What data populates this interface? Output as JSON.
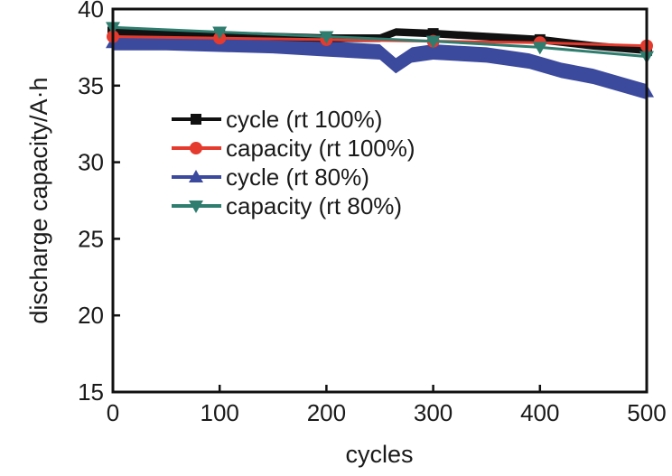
{
  "chart_data": {
    "type": "line",
    "title": "",
    "xlabel": "cycles",
    "ylabel": "discharge capacity/A·h",
    "xlim": [
      0,
      500
    ],
    "ylim": [
      15,
      40
    ],
    "xticks": [
      0,
      100,
      200,
      300,
      400,
      500
    ],
    "yticks": [
      15,
      20,
      25,
      30,
      35,
      40
    ],
    "xtick_labels": [
      "0",
      "100",
      "200",
      "300",
      "400",
      "500"
    ],
    "ytick_labels": [
      "15",
      "20",
      "25",
      "30",
      "35",
      "40"
    ],
    "grid": false,
    "legend_position": "center-left",
    "series": [
      {
        "name": "cycle (rt 100%)",
        "color": "#111111",
        "marker": "square",
        "band": 0.5,
        "x": [
          0,
          50,
          100,
          150,
          200,
          250,
          265,
          300,
          350,
          400,
          450,
          500
        ],
        "values": [
          38.5,
          38.4,
          38.3,
          38.2,
          38.1,
          38.1,
          38.5,
          38.4,
          38.2,
          38.0,
          37.6,
          37.3
        ]
      },
      {
        "name": "capacity (rt 100%)",
        "color": "#e53a2e",
        "marker": "circle",
        "band": 0,
        "x": [
          0,
          100,
          200,
          300,
          400,
          500
        ],
        "values": [
          38.2,
          38.1,
          38.0,
          37.9,
          37.8,
          37.6
        ]
      },
      {
        "name": "cycle (rt 80%)",
        "color": "#3c4a9e",
        "marker": "triangle-up",
        "band": 1.0,
        "x": [
          0,
          50,
          100,
          150,
          200,
          250,
          265,
          280,
          300,
          350,
          390,
          420,
          450,
          480,
          500
        ],
        "values": [
          37.8,
          37.8,
          37.7,
          37.6,
          37.4,
          37.2,
          36.3,
          37.0,
          37.2,
          37.0,
          36.6,
          36.0,
          35.6,
          35.0,
          34.6
        ]
      },
      {
        "name": "capacity (rt 80%)",
        "color": "#2e7d6e",
        "marker": "triangle-down",
        "band": 0,
        "x": [
          0,
          100,
          200,
          300,
          400,
          500
        ],
        "values": [
          38.8,
          38.5,
          38.2,
          37.9,
          37.5,
          36.9
        ]
      }
    ]
  }
}
